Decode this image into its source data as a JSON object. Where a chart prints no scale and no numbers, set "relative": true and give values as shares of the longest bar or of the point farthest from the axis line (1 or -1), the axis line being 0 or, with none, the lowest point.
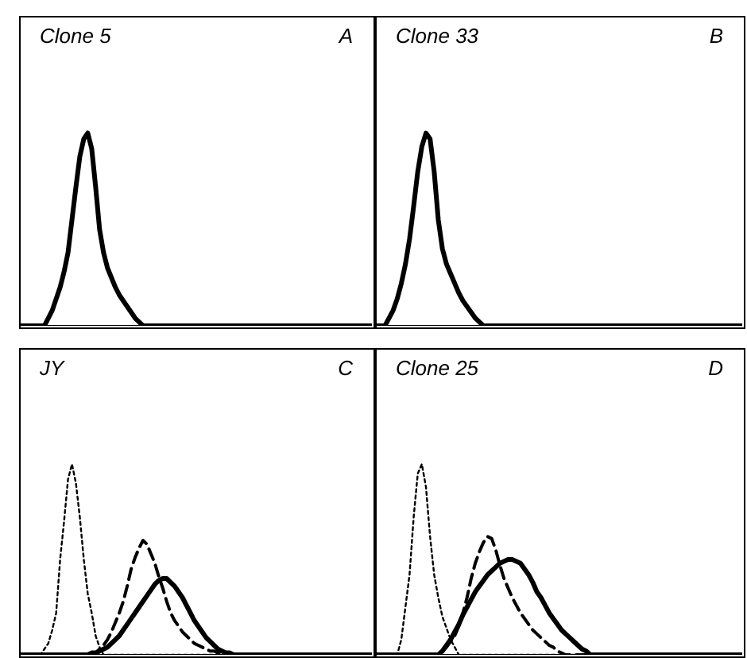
{
  "chart_data": [
    {
      "type": "line",
      "title": "Clone 5",
      "annotations": [
        "A"
      ],
      "relative": true,
      "legend": false,
      "grid": false,
      "tick_labels": false,
      "categories": [
        null,
        null,
        null,
        null,
        null,
        null,
        null,
        null,
        null,
        null,
        null,
        null,
        null,
        null,
        null,
        null,
        null,
        null,
        null,
        null,
        null,
        null,
        null,
        null,
        null,
        null,
        null,
        null,
        null,
        null,
        null,
        null,
        null,
        null,
        null,
        null,
        null,
        null,
        null,
        null,
        null,
        null,
        null,
        null,
        null,
        null,
        null,
        null,
        null,
        null,
        null,
        null,
        null,
        null,
        null,
        null,
        null,
        null,
        null,
        null,
        null,
        null,
        null,
        null,
        null,
        null,
        null,
        null,
        null,
        null,
        null,
        null,
        null,
        null,
        null,
        null,
        null,
        null,
        null,
        null,
        null,
        null,
        null,
        null,
        null,
        null,
        null,
        null,
        null,
        null
      ],
      "series": [
        {
          "color": "#000000",
          "line_style": "solid",
          "values": [
            0,
            0,
            0,
            0,
            0,
            0,
            0,
            0.04,
            0.08,
            0.14,
            0.2,
            0.28,
            0.38,
            0.55,
            0.72,
            0.88,
            0.97,
            1,
            0.92,
            0.72,
            0.5,
            0.38,
            0.3,
            0.25,
            0.2,
            0.16,
            0.13,
            0.1,
            0.07,
            0.04,
            0.02,
            0,
            0,
            0,
            0,
            0,
            0,
            0,
            0,
            0,
            0,
            0,
            0,
            0,
            0,
            0,
            0,
            0,
            0,
            0,
            0,
            0,
            0,
            0,
            0,
            0,
            0,
            0,
            0,
            0,
            0,
            0,
            0,
            0,
            0,
            0,
            0,
            0,
            0,
            0,
            0,
            0,
            0,
            0,
            0,
            0,
            0,
            0,
            0,
            0,
            0,
            0,
            0,
            0,
            0,
            0,
            0,
            0,
            0,
            0
          ]
        }
      ]
    },
    {
      "type": "line",
      "title": "Clone 33",
      "annotations": [
        "B"
      ],
      "relative": true,
      "legend": false,
      "grid": false,
      "tick_labels": false,
      "categories": [
        null,
        null,
        null,
        null,
        null,
        null,
        null,
        null,
        null,
        null,
        null,
        null,
        null,
        null,
        null,
        null,
        null,
        null,
        null,
        null,
        null,
        null,
        null,
        null,
        null,
        null,
        null,
        null,
        null,
        null,
        null,
        null,
        null,
        null,
        null,
        null,
        null,
        null,
        null,
        null,
        null,
        null,
        null,
        null,
        null,
        null,
        null,
        null,
        null,
        null,
        null,
        null,
        null,
        null,
        null,
        null,
        null,
        null,
        null,
        null,
        null,
        null,
        null,
        null,
        null,
        null,
        null,
        null,
        null,
        null,
        null,
        null,
        null,
        null,
        null,
        null,
        null,
        null,
        null,
        null,
        null,
        null,
        null,
        null,
        null,
        null,
        null,
        null,
        null,
        null
      ],
      "series": [
        {
          "color": "#000000",
          "line_style": "solid",
          "values": [
            0,
            0,
            0,
            0.04,
            0.08,
            0.14,
            0.22,
            0.32,
            0.45,
            0.62,
            0.8,
            0.93,
            1,
            0.97,
            0.8,
            0.55,
            0.4,
            0.32,
            0.27,
            0.22,
            0.17,
            0.13,
            0.1,
            0.07,
            0.04,
            0.02,
            0,
            0,
            0,
            0,
            0,
            0,
            0,
            0,
            0,
            0,
            0,
            0,
            0,
            0,
            0,
            0,
            0,
            0,
            0,
            0,
            0,
            0,
            0,
            0,
            0,
            0,
            0,
            0,
            0,
            0,
            0,
            0,
            0,
            0,
            0,
            0,
            0,
            0,
            0,
            0,
            0,
            0,
            0,
            0,
            0,
            0,
            0,
            0,
            0,
            0,
            0,
            0,
            0,
            0,
            0,
            0,
            0,
            0,
            0,
            0,
            0,
            0,
            0,
            0
          ]
        }
      ]
    },
    {
      "type": "line",
      "title": "JY",
      "annotations": [
        "C"
      ],
      "relative": true,
      "legend": false,
      "grid": false,
      "tick_labels": false,
      "categories": [
        null,
        null,
        null,
        null,
        null,
        null,
        null,
        null,
        null,
        null,
        null,
        null,
        null,
        null,
        null,
        null,
        null,
        null,
        null,
        null,
        null,
        null,
        null,
        null,
        null,
        null,
        null,
        null,
        null,
        null,
        null,
        null,
        null,
        null,
        null,
        null,
        null,
        null,
        null,
        null,
        null,
        null,
        null,
        null,
        null,
        null,
        null,
        null,
        null,
        null,
        null,
        null,
        null,
        null,
        null,
        null,
        null,
        null,
        null,
        null,
        null,
        null,
        null,
        null,
        null,
        null,
        null,
        null,
        null,
        null,
        null,
        null,
        null,
        null,
        null,
        null,
        null,
        null,
        null,
        null,
        null,
        null,
        null,
        null,
        null,
        null,
        null,
        null,
        null,
        null
      ],
      "series": [
        {
          "color": "#000000",
          "line_style": "dotted",
          "values": [
            0,
            0,
            0,
            0,
            0,
            0,
            0.03,
            0.06,
            0.13,
            0.22,
            0.5,
            0.7,
            0.92,
            1,
            0.9,
            0.72,
            0.5,
            0.32,
            0.22,
            0.1,
            0.04,
            0,
            0,
            0,
            0,
            0,
            0,
            0,
            0,
            0,
            0,
            0,
            0,
            0,
            0,
            0,
            0,
            0,
            0,
            0,
            0,
            0,
            0,
            0,
            0,
            0,
            0,
            0,
            0,
            0,
            0,
            0,
            0,
            0,
            0,
            0,
            0,
            0,
            0,
            0,
            0,
            0,
            0,
            0,
            0,
            0,
            0,
            0,
            0,
            0,
            0,
            0,
            0,
            0,
            0,
            0,
            0,
            0,
            0,
            0,
            0,
            0,
            0,
            0,
            0,
            0,
            0,
            0,
            0,
            0
          ]
        },
        {
          "color": "#000000",
          "line_style": "dashed",
          "values": [
            0,
            0,
            0,
            0,
            0,
            0,
            0,
            0,
            0,
            0,
            0,
            0,
            0,
            0,
            0,
            0,
            0,
            0,
            0,
            0.01,
            0.03,
            0.05,
            0.08,
            0.12,
            0.17,
            0.22,
            0.28,
            0.36,
            0.45,
            0.51,
            0.56,
            0.6,
            0.58,
            0.53,
            0.48,
            0.41,
            0.35,
            0.28,
            0.22,
            0.18,
            0.15,
            0.12,
            0.1,
            0.08,
            0.06,
            0.05,
            0.04,
            0.03,
            0.02,
            0.02,
            0.01,
            0.01,
            0,
            0,
            0,
            0,
            0,
            0,
            0,
            0,
            0,
            0,
            0,
            0,
            0,
            0,
            0,
            0,
            0,
            0,
            0,
            0,
            0,
            0,
            0,
            0,
            0,
            0,
            0,
            0,
            0,
            0,
            0,
            0,
            0,
            0,
            0,
            0,
            0,
            0
          ]
        },
        {
          "color": "#000000",
          "line_style": "solid",
          "values": [
            0,
            0,
            0,
            0,
            0,
            0,
            0,
            0,
            0,
            0,
            0,
            0,
            0,
            0,
            0,
            0,
            0,
            0,
            0.01,
            0.01,
            0.02,
            0.03,
            0.04,
            0.06,
            0.08,
            0.1,
            0.13,
            0.16,
            0.19,
            0.22,
            0.25,
            0.28,
            0.31,
            0.34,
            0.37,
            0.39,
            0.4,
            0.4,
            0.38,
            0.36,
            0.33,
            0.3,
            0.26,
            0.22,
            0.18,
            0.15,
            0.12,
            0.09,
            0.07,
            0.05,
            0.03,
            0.02,
            0.01,
            0.01,
            0,
            0,
            0,
            0,
            0,
            0,
            0,
            0,
            0,
            0,
            0,
            0,
            0,
            0,
            0,
            0,
            0,
            0,
            0,
            0,
            0,
            0,
            0,
            0,
            0,
            0,
            0,
            0,
            0,
            0,
            0,
            0,
            0,
            0,
            0,
            0
          ]
        }
      ]
    },
    {
      "type": "line",
      "title": "Clone 25",
      "annotations": [
        "D"
      ],
      "relative": true,
      "legend": false,
      "grid": false,
      "tick_labels": false,
      "categories": [
        null,
        null,
        null,
        null,
        null,
        null,
        null,
        null,
        null,
        null,
        null,
        null,
        null,
        null,
        null,
        null,
        null,
        null,
        null,
        null,
        null,
        null,
        null,
        null,
        null,
        null,
        null,
        null,
        null,
        null,
        null,
        null,
        null,
        null,
        null,
        null,
        null,
        null,
        null,
        null,
        null,
        null,
        null,
        null,
        null,
        null,
        null,
        null,
        null,
        null,
        null,
        null,
        null,
        null,
        null,
        null,
        null,
        null,
        null,
        null,
        null,
        null,
        null,
        null,
        null,
        null,
        null,
        null,
        null,
        null,
        null,
        null,
        null,
        null,
        null,
        null,
        null,
        null,
        null,
        null,
        null,
        null,
        null,
        null,
        null,
        null,
        null,
        null,
        null,
        null
      ],
      "series": [
        {
          "color": "#000000",
          "line_style": "dotted",
          "values": [
            0,
            0,
            0,
            0,
            0,
            0,
            0.08,
            0.25,
            0.42,
            0.72,
            0.95,
            1,
            0.88,
            0.62,
            0.42,
            0.3,
            0.2,
            0.14,
            0.08,
            0.04,
            0,
            0,
            0,
            0,
            0,
            0,
            0,
            0,
            0,
            0,
            0,
            0,
            0,
            0,
            0,
            0,
            0,
            0,
            0,
            0,
            0,
            0,
            0,
            0,
            0,
            0,
            0,
            0,
            0,
            0,
            0,
            0,
            0,
            0,
            0,
            0,
            0,
            0,
            0,
            0,
            0,
            0,
            0,
            0,
            0,
            0,
            0,
            0,
            0,
            0,
            0,
            0,
            0,
            0,
            0,
            0,
            0,
            0,
            0,
            0,
            0,
            0,
            0,
            0,
            0,
            0,
            0,
            0,
            0,
            0
          ]
        },
        {
          "color": "#000000",
          "line_style": "dashed",
          "values": [
            0,
            0,
            0,
            0,
            0,
            0,
            0,
            0,
            0,
            0,
            0,
            0,
            0,
            0,
            0,
            0,
            0.02,
            0.04,
            0.07,
            0.1,
            0.15,
            0.22,
            0.3,
            0.4,
            0.48,
            0.54,
            0.59,
            0.62,
            0.61,
            0.55,
            0.47,
            0.4,
            0.35,
            0.3,
            0.26,
            0.22,
            0.19,
            0.16,
            0.13,
            0.11,
            0.09,
            0.07,
            0.05,
            0.04,
            0.02,
            0.01,
            0,
            0,
            0,
            0,
            0,
            0,
            0,
            0,
            0,
            0,
            0,
            0,
            0,
            0,
            0,
            0,
            0,
            0,
            0,
            0,
            0,
            0,
            0,
            0,
            0,
            0,
            0,
            0,
            0,
            0,
            0,
            0,
            0,
            0,
            0,
            0,
            0,
            0,
            0,
            0,
            0,
            0,
            0,
            0
          ]
        },
        {
          "color": "#000000",
          "line_style": "solid",
          "values": [
            0,
            0,
            0,
            0,
            0,
            0,
            0,
            0,
            0,
            0,
            0,
            0,
            0,
            0,
            0,
            0,
            0.02,
            0.05,
            0.08,
            0.12,
            0.16,
            0.21,
            0.25,
            0.29,
            0.33,
            0.36,
            0.39,
            0.42,
            0.44,
            0.46,
            0.48,
            0.49,
            0.5,
            0.5,
            0.49,
            0.48,
            0.45,
            0.42,
            0.38,
            0.33,
            0.3,
            0.26,
            0.22,
            0.19,
            0.16,
            0.13,
            0.11,
            0.09,
            0.07,
            0.05,
            0.03,
            0.02,
            0,
            0,
            0,
            0,
            0,
            0,
            0,
            0,
            0,
            0,
            0,
            0,
            0,
            0,
            0,
            0,
            0,
            0,
            0,
            0,
            0,
            0,
            0,
            0,
            0,
            0,
            0,
            0,
            0,
            0,
            0,
            0,
            0,
            0,
            0,
            0,
            0,
            0
          ]
        }
      ]
    }
  ]
}
